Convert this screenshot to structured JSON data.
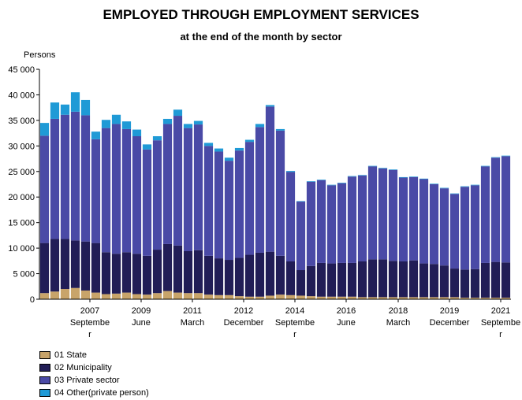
{
  "colors": {
    "state": "#c8a46a",
    "municipality": "#211d56",
    "private_sector": "#4a4aa6",
    "other": "#1f9ad6"
  },
  "chart_data": {
    "type": "bar",
    "stacked": true,
    "title": "EMPLOYED THROUGH EMPLOYMENT SERVICES",
    "subtitle": "at the end of the month by sector",
    "ylabel": "Persons",
    "ylim": [
      0,
      45000
    ],
    "yticks": [
      "0",
      "5 000",
      "10 000",
      "15 000",
      "20 000",
      "25 000",
      "30 000",
      "35 000",
      "40 000",
      "45 000"
    ],
    "xtick_labels": [
      {
        "year": "2007",
        "month": "Septembe",
        "wrap": "r"
      },
      {
        "year": "2009",
        "month": "June",
        "wrap": ""
      },
      {
        "year": "2011",
        "month": "March",
        "wrap": ""
      },
      {
        "year": "2012",
        "month": "December",
        "wrap": ""
      },
      {
        "year": "2014",
        "month": "Septembe",
        "wrap": "r"
      },
      {
        "year": "2016",
        "month": "June",
        "wrap": ""
      },
      {
        "year": "2018",
        "month": "March",
        "wrap": ""
      },
      {
        "year": "2019",
        "month": "December",
        "wrap": ""
      },
      {
        "year": "2021",
        "month": "Septembe",
        "wrap": "r"
      }
    ],
    "legend_position": "bottom-left",
    "series": [
      {
        "name": "01 State",
        "key": "state",
        "values": [
          1200,
          1500,
          2000,
          2200,
          1700,
          1300,
          1000,
          1100,
          1300,
          1000,
          900,
          1200,
          1600,
          1300,
          1200,
          1200,
          900,
          800,
          800,
          600,
          500,
          500,
          700,
          900,
          800,
          700,
          600,
          500,
          500,
          500,
          500,
          400,
          400,
          400,
          400,
          400,
          400,
          400,
          400,
          400,
          400,
          300,
          300,
          300,
          300,
          300
        ]
      },
      {
        "name": "02 Municipality",
        "key": "municipality",
        "values": [
          9800,
          10300,
          9800,
          9300,
          9600,
          9700,
          8200,
          7800,
          7900,
          7900,
          7600,
          8500,
          9200,
          9200,
          8200,
          8400,
          7600,
          7200,
          6900,
          7500,
          8200,
          8600,
          8600,
          7600,
          6600,
          5000,
          5900,
          6600,
          6500,
          6600,
          6600,
          7000,
          7400,
          7400,
          7100,
          7000,
          7200,
          6600,
          6500,
          6200,
          5600,
          5500,
          5600,
          6800,
          7000,
          6900
        ]
      },
      {
        "name": "03 Private sector",
        "key": "private_sector",
        "values": [
          21000,
          23500,
          24300,
          25200,
          24700,
          20300,
          24300,
          25400,
          24100,
          23000,
          20800,
          21400,
          23500,
          25400,
          24100,
          24600,
          21500,
          20900,
          19400,
          21000,
          22100,
          24600,
          28400,
          24500,
          17500,
          13400,
          16500,
          16200,
          15300,
          15600,
          16900,
          16800,
          18200,
          17800,
          17800,
          16400,
          16300,
          16500,
          15600,
          15100,
          14600,
          16200,
          16400,
          18900,
          20400,
          20800
        ]
      },
      {
        "name": "04 Other(private person)",
        "key": "other",
        "values": [
          2500,
          3200,
          2000,
          3800,
          3000,
          1500,
          1600,
          1800,
          1500,
          1300,
          1000,
          800,
          1000,
          1200,
          800,
          700,
          600,
          600,
          600,
          500,
          400,
          600,
          300,
          300,
          200,
          100,
          100,
          100,
          100,
          100,
          100,
          100,
          100,
          100,
          100,
          100,
          100,
          100,
          100,
          100,
          100,
          100,
          100,
          100,
          100,
          100
        ]
      }
    ]
  }
}
